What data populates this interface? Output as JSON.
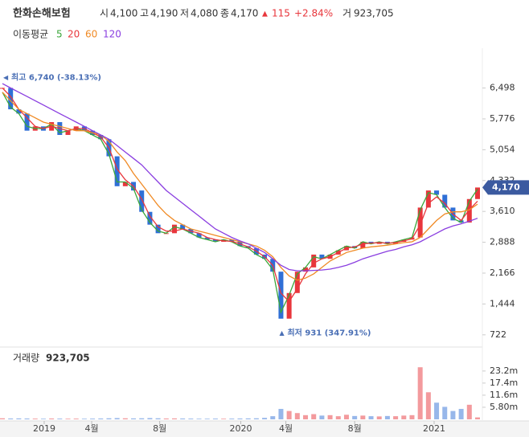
{
  "header": {
    "name": "한화손해보험",
    "open_label": "시",
    "open": "4,100",
    "high_label": "고",
    "high": "4,190",
    "low_label": "저",
    "low": "4,080",
    "close_label": "종",
    "close": "4,170",
    "change": "115",
    "change_pct": "+2.84%",
    "volume_label": "거",
    "volume": "923,705",
    "ma_label": "이동평균"
  },
  "chart_data": [
    {
      "type": "candlestick",
      "up_color": "#e8363c",
      "down_color": "#2f6fd6",
      "x": [
        0,
        1,
        2,
        3,
        4,
        5,
        6,
        7,
        8,
        9,
        10,
        11,
        12,
        13,
        14,
        15,
        16,
        17,
        18,
        19,
        20,
        21,
        22,
        23,
        24,
        25,
        26,
        27,
        28,
        29,
        30,
        31,
        32,
        33,
        34,
        35,
        36,
        37,
        38,
        39,
        40,
        41,
        42,
        43,
        44,
        45,
        46,
        47,
        48,
        49,
        50,
        51,
        52,
        53,
        54,
        55,
        56,
        57,
        58
      ],
      "close": [
        6500,
        6000,
        5900,
        5500,
        5600,
        5500,
        5700,
        5400,
        5500,
        5600,
        5500,
        5400,
        5300,
        4900,
        4200,
        4300,
        4100,
        3600,
        3300,
        3100,
        3100,
        3300,
        3200,
        3100,
        3000,
        2950,
        2900,
        2950,
        2900,
        2800,
        2750,
        2600,
        2500,
        2200,
        1100,
        1700,
        2200,
        2300,
        2600,
        2500,
        2600,
        2700,
        2800,
        2750,
        2900,
        2850,
        2900,
        2850,
        2900,
        2950,
        3000,
        3700,
        4100,
        4000,
        3700,
        3400,
        3350,
        3900,
        4170
      ],
      "series": [
        {
          "name": "5",
          "color": "#3aa63a",
          "values": [
            6400,
            6050,
            5900,
            5600,
            5550,
            5550,
            5650,
            5450,
            5500,
            5550,
            5500,
            5400,
            5300,
            4950,
            4300,
            4300,
            4150,
            3650,
            3350,
            3150,
            3100,
            3250,
            3200,
            3100,
            3000,
            2950,
            2900,
            2950,
            2900,
            2800,
            2750,
            2600,
            2500,
            2250,
            1250,
            1650,
            2150,
            2300,
            2550,
            2500,
            2600,
            2700,
            2800,
            2750,
            2900,
            2850,
            2900,
            2850,
            2900,
            2950,
            3000,
            3650,
            4050,
            4000,
            3700,
            3450,
            3350,
            3850,
            4130
          ]
        },
        {
          "name": "20",
          "color": "#e8363c",
          "values": [
            6500,
            6300,
            6000,
            5800,
            5600,
            5550,
            5600,
            5550,
            5500,
            5550,
            5550,
            5450,
            5350,
            5100,
            4600,
            4350,
            4200,
            3900,
            3500,
            3250,
            3150,
            3150,
            3200,
            3150,
            3100,
            3000,
            2950,
            2920,
            2910,
            2850,
            2780,
            2680,
            2550,
            2350,
            1700,
            1500,
            1800,
            2150,
            2400,
            2500,
            2550,
            2650,
            2750,
            2780,
            2850,
            2870,
            2880,
            2870,
            2880,
            2920,
            2970,
            3300,
            3800,
            3950,
            3800,
            3550,
            3400,
            3650,
            3850
          ]
        },
        {
          "name": "60",
          "color": "#f08a24",
          "values": [
            6400,
            6200,
            6000,
            5900,
            5800,
            5700,
            5650,
            5600,
            5550,
            5500,
            5500,
            5450,
            5400,
            5250,
            5000,
            4800,
            4500,
            4250,
            4000,
            3750,
            3550,
            3400,
            3300,
            3200,
            3150,
            3100,
            3050,
            3000,
            2950,
            2900,
            2850,
            2800,
            2700,
            2550,
            2300,
            2100,
            2000,
            2050,
            2150,
            2300,
            2450,
            2550,
            2650,
            2700,
            2750,
            2780,
            2800,
            2820,
            2850,
            2880,
            2900,
            3000,
            3200,
            3400,
            3550,
            3600,
            3600,
            3650,
            3780
          ]
        },
        {
          "name": "120",
          "color": "#8a3ee0",
          "values": [
            6600,
            6500,
            6400,
            6300,
            6200,
            6100,
            6000,
            5900,
            5800,
            5700,
            5600,
            5500,
            5400,
            5300,
            5150,
            5000,
            4850,
            4700,
            4500,
            4300,
            4100,
            3950,
            3800,
            3650,
            3500,
            3350,
            3200,
            3100,
            3000,
            2920,
            2850,
            2750,
            2650,
            2500,
            2350,
            2250,
            2220,
            2220,
            2230,
            2240,
            2260,
            2300,
            2350,
            2420,
            2500,
            2560,
            2620,
            2680,
            2720,
            2780,
            2830,
            2900,
            3000,
            3100,
            3200,
            3270,
            3320,
            3380,
            3450
          ]
        }
      ],
      "xlim": [
        0,
        58
      ],
      "xticks": [
        {
          "value": 5.1,
          "label": "2019"
        },
        {
          "value": 10.9,
          "label": "4월"
        },
        {
          "value": 19.2,
          "label": "8월"
        },
        {
          "value": 29.1,
          "label": "2020"
        },
        {
          "value": 34.6,
          "label": "4월"
        },
        {
          "value": 43,
          "label": "8월"
        },
        {
          "value": 52.7,
          "label": "2021"
        }
      ],
      "ylim": [
        380,
        6960
      ],
      "yticks": [
        {
          "value": 6498,
          "label": "6,498"
        },
        {
          "value": 5776,
          "label": "5,776"
        },
        {
          "value": 5054,
          "label": "5,054"
        },
        {
          "value": 4332,
          "label": "4,332"
        },
        {
          "value": 3610,
          "label": "3,610"
        },
        {
          "value": 2888,
          "label": "2,888"
        },
        {
          "value": 2166,
          "label": "2,166"
        },
        {
          "value": 1444,
          "label": "1,444"
        },
        722
      ],
      "high_annotation": "최고 6,740 (-38.13%)",
      "low_annotation": "최저 931 (347.91%)",
      "high_x": 0,
      "high_value": 6740,
      "low_x": 34.2,
      "low_value": 931
    },
    {
      "type": "bar",
      "title": "거래량",
      "values": [
        500000,
        400000,
        450000,
        400000,
        350000,
        300000,
        400000,
        350000,
        300000,
        350000,
        300000,
        350000,
        400000,
        500000,
        600000,
        500000,
        450000,
        500000,
        600000,
        500000,
        400000,
        450000,
        400000,
        350000,
        300000,
        300000,
        350000,
        300000,
        350000,
        400000,
        450000,
        500000,
        700000,
        1500000,
        5000000,
        4000000,
        3000000,
        2000000,
        2500000,
        1800000,
        2000000,
        1500000,
        2200000,
        1600000,
        1800000,
        1500000,
        1400000,
        1600000,
        1500000,
        1800000,
        2000000,
        25000000,
        13000000,
        8000000,
        6000000,
        4000000,
        5000000,
        7000000,
        923705
      ],
      "ylim": [
        0,
        27000000
      ],
      "yticks": [
        {
          "value": 23200000,
          "label": "23.2m"
        },
        {
          "value": 17400000,
          "label": "17.4m"
        },
        {
          "value": 11600000,
          "label": "11.6m"
        },
        {
          "value": 5800000,
          "label": "5.80m"
        }
      ]
    }
  ]
}
